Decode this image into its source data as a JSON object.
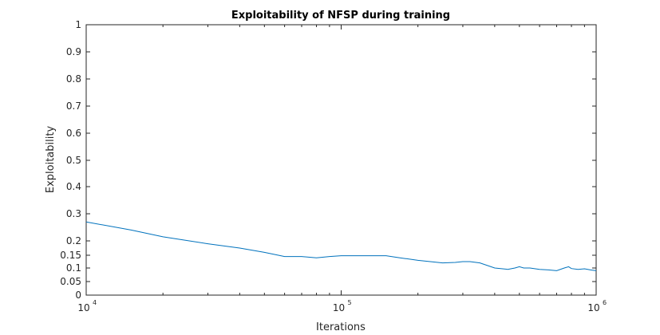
{
  "chart_data": {
    "type": "line",
    "title": "Exploitability of NFSP during training",
    "xlabel": "Iterations",
    "ylabel": "Exploitability",
    "x_scale": "log",
    "xlim": [
      10000,
      1000000
    ],
    "ylim": [
      0,
      1
    ],
    "x_ticks": [
      {
        "value": 10000,
        "base": "10",
        "exp": "4"
      },
      {
        "value": 100000,
        "base": "10",
        "exp": "5"
      },
      {
        "value": 1000000,
        "base": "10",
        "exp": "6"
      }
    ],
    "y_ticks": [
      {
        "value": 0,
        "label": "0"
      },
      {
        "value": 0.05,
        "label": "0.05"
      },
      {
        "value": 0.1,
        "label": "0.1"
      },
      {
        "value": 0.15,
        "label": "0.15"
      },
      {
        "value": 0.2,
        "label": "0.2"
      },
      {
        "value": 0.3,
        "label": "0.3"
      },
      {
        "value": 0.4,
        "label": "0.4"
      },
      {
        "value": 0.5,
        "label": "0.5"
      },
      {
        "value": 0.6,
        "label": "0.6"
      },
      {
        "value": 0.7,
        "label": "0.7"
      },
      {
        "value": 0.8,
        "label": "0.8"
      },
      {
        "value": 0.9,
        "label": "0.9"
      },
      {
        "value": 1,
        "label": "1"
      }
    ],
    "grid": false,
    "line_color": "#0072BD",
    "series": [
      {
        "x": [
          10000,
          15000,
          20000,
          30000,
          40000,
          50000,
          60000,
          70000,
          80000,
          90000,
          100000,
          120000,
          150000,
          170000,
          200000,
          250000,
          280000,
          300000,
          320000,
          350000,
          400000,
          450000,
          480000,
          500000,
          520000,
          550000,
          600000,
          650000,
          700000,
          750000,
          780000,
          800000,
          850000,
          900000,
          950000,
          1000000
        ],
        "y": [
          0.27,
          0.24,
          0.215,
          0.19,
          0.175,
          0.16,
          0.145,
          0.145,
          0.14,
          0.145,
          0.148,
          0.148,
          0.148,
          0.14,
          0.13,
          0.12,
          0.122,
          0.125,
          0.125,
          0.12,
          0.1,
          0.095,
          0.1,
          0.105,
          0.1,
          0.1,
          0.095,
          0.093,
          0.09,
          0.1,
          0.105,
          0.098,
          0.095,
          0.097,
          0.093,
          0.09
        ]
      }
    ]
  }
}
